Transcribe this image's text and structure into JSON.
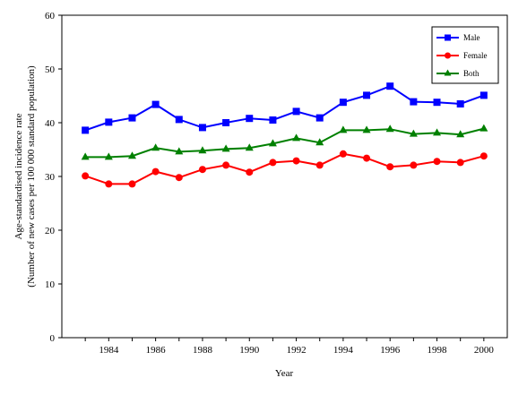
{
  "chart_data": {
    "type": "line",
    "title": "",
    "xlabel": "Year",
    "ylabel": "Age-standardised incidence rate",
    "ylabel_sub": "(Number of new cases per 100 000 standard population)",
    "x": [
      1983,
      1984,
      1985,
      1986,
      1987,
      1988,
      1989,
      1990,
      1991,
      1992,
      1993,
      1994,
      1995,
      1996,
      1997,
      1998,
      1999,
      2000
    ],
    "xticks": [
      1984,
      1986,
      1988,
      1990,
      1992,
      1994,
      1996,
      1998,
      2000
    ],
    "xlim": [
      1982,
      2001
    ],
    "ylim": [
      0,
      60
    ],
    "yticks": [
      0,
      10,
      20,
      30,
      40,
      50,
      60
    ],
    "grid": false,
    "legend_position": "top-right",
    "series": [
      {
        "name": "Male",
        "color": "#0000ff",
        "marker": "square",
        "values": [
          38.6,
          40.1,
          40.9,
          43.4,
          40.6,
          39.1,
          40.0,
          40.8,
          40.5,
          42.1,
          40.9,
          43.8,
          45.1,
          46.8,
          43.9,
          43.8,
          43.5,
          45.1
        ]
      },
      {
        "name": "Female",
        "color": "#ff0000",
        "marker": "circle",
        "values": [
          30.1,
          28.6,
          28.6,
          30.9,
          29.8,
          31.3,
          32.1,
          30.8,
          32.6,
          32.9,
          32.1,
          34.2,
          33.4,
          31.8,
          32.1,
          32.8,
          32.6,
          33.8
        ]
      },
      {
        "name": "Both",
        "color": "#008000",
        "marker": "triangle",
        "values": [
          33.6,
          33.6,
          33.8,
          35.3,
          34.6,
          34.8,
          35.1,
          35.3,
          36.1,
          37.1,
          36.3,
          38.6,
          38.6,
          38.8,
          37.9,
          38.1,
          37.8,
          38.9
        ]
      }
    ]
  }
}
